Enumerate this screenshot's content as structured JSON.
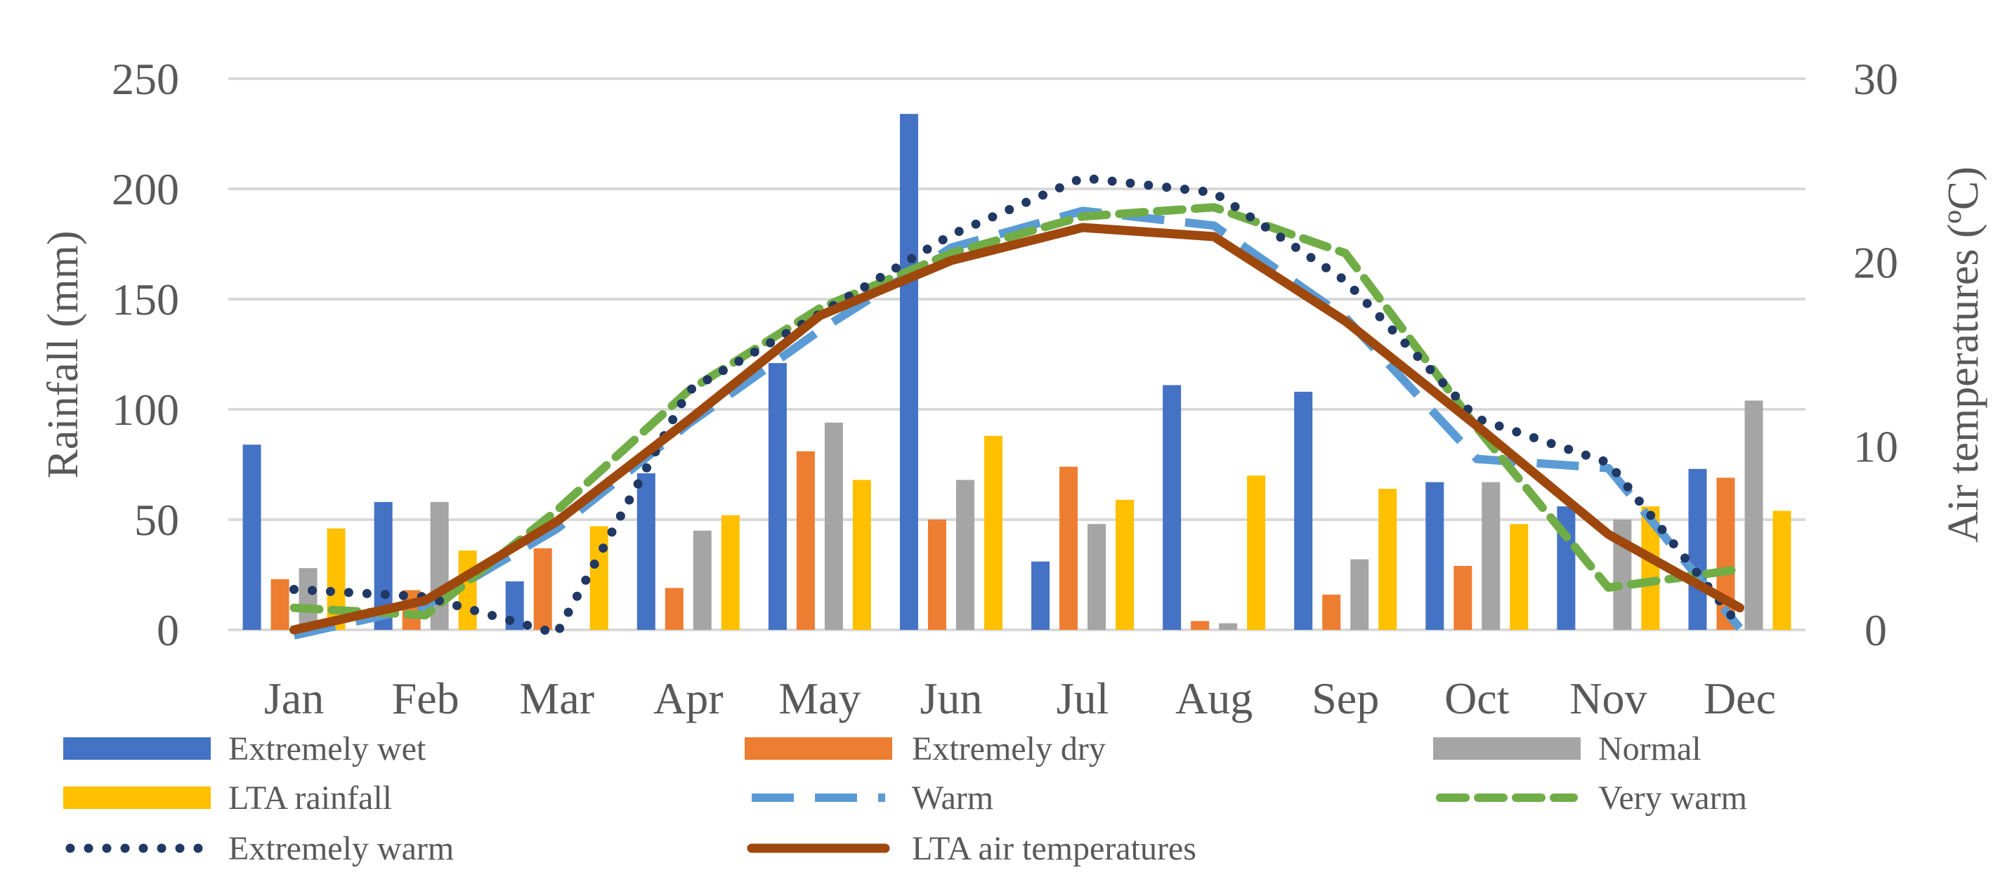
{
  "chart_data": {
    "type": "bar",
    "categories": [
      "Jan",
      "Feb",
      "Mar",
      "Apr",
      "May",
      "Jun",
      "Jul",
      "Aug",
      "Sep",
      "Oct",
      "Nov",
      "Dec"
    ],
    "ylabel": "Rainfall (mm)",
    "y2label": "Air temperatures (ºC)",
    "ylim": [
      0,
      250
    ],
    "y2lim": [
      0,
      30
    ],
    "yticks": [
      "0",
      "50",
      "100",
      "150",
      "200",
      "250"
    ],
    "y2ticks": [
      "0",
      "10",
      "20",
      "30"
    ],
    "grid": true,
    "legend_position": "bottom",
    "bar_series": [
      {
        "name": "Extremely wet",
        "color": "#4472C4",
        "values": [
          84,
          58,
          22,
          71,
          121,
          234,
          31,
          111,
          108,
          67,
          56,
          73
        ]
      },
      {
        "name": "Extremely dry",
        "color": "#ED7D31",
        "values": [
          23,
          18,
          37,
          19,
          81,
          50,
          74,
          4,
          16,
          29,
          0,
          69
        ]
      },
      {
        "name": "Normal",
        "color": "#A5A5A5",
        "values": [
          28,
          58,
          0,
          45,
          94,
          68,
          48,
          3,
          32,
          67,
          50,
          104
        ]
      },
      {
        "name": "LTA rainfall",
        "color": "#FFC000",
        "values": [
          46,
          36,
          47,
          52,
          68,
          88,
          59,
          70,
          64,
          48,
          56,
          54
        ]
      }
    ],
    "line_series": [
      {
        "name": "Warm",
        "color": "#5B9BD5",
        "style": "long-dash",
        "values": [
          -0.3,
          1.3,
          5.5,
          11.2,
          16.3,
          20.8,
          22.8,
          22.0,
          17.0,
          9.3,
          8.8,
          0.1
        ]
      },
      {
        "name": "Very warm",
        "color": "#70AD47",
        "style": "dash",
        "values": [
          1.2,
          0.8,
          6.5,
          13.0,
          17.5,
          20.5,
          22.5,
          23.0,
          20.5,
          11.0,
          2.3,
          3.3
        ]
      },
      {
        "name": "Extremely warm",
        "color": "#203864",
        "style": "dot",
        "values": [
          2.2,
          1.8,
          -0.2,
          13.0,
          17.2,
          21.5,
          24.6,
          23.8,
          19.0,
          11.5,
          9.1,
          0.2
        ]
      },
      {
        "name": "LTA air temperatures",
        "color": "#9E480E",
        "style": "solid",
        "values": [
          0.0,
          1.6,
          5.9,
          11.4,
          17.1,
          20.1,
          21.9,
          21.4,
          16.8,
          11.1,
          5.2,
          1.2
        ]
      }
    ],
    "legend": [
      "Extremely wet",
      "Extremely dry",
      "Normal",
      "LTA rainfall",
      "Warm",
      "Very warm",
      "Extremely warm",
      "LTA air temperatures"
    ]
  }
}
